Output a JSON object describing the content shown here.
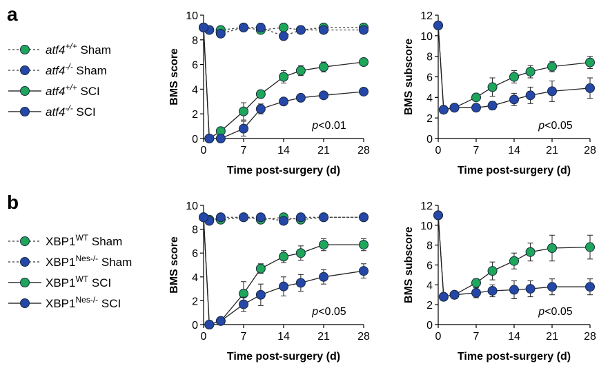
{
  "panels": [
    {
      "letter": "a",
      "legend": [
        {
          "main": "atf4",
          "sup": "+/+",
          "rest": " Sham",
          "italic": true,
          "color": "#1ea65a",
          "dashed": true
        },
        {
          "main": "atf4",
          "sup": "-/-",
          "rest": " Sham",
          "italic": true,
          "color": "#2447a8",
          "dashed": true
        },
        {
          "main": "atf4",
          "sup": "+/+",
          "rest": " SCI",
          "italic": true,
          "color": "#1ea65a",
          "dashed": false
        },
        {
          "main": "atf4",
          "sup": "-/-",
          "rest": " SCI",
          "italic": true,
          "color": "#2447a8",
          "dashed": false
        }
      ]
    },
    {
      "letter": "b",
      "legend": [
        {
          "main": "XBP1",
          "sup": "WT",
          "rest": " Sham",
          "italic": false,
          "color": "#1ea65a",
          "dashed": true
        },
        {
          "main": "XBP1",
          "sup": "Nes-/-",
          "rest": " Sham",
          "italic": false,
          "color": "#2447a8",
          "dashed": true
        },
        {
          "main": "XBP1",
          "sup": "WT",
          "rest": " SCI",
          "italic": false,
          "color": "#1ea65a",
          "dashed": false
        },
        {
          "main": "XBP1",
          "sup": "Nes-/-",
          "rest": " SCI",
          "italic": false,
          "color": "#2447a8",
          "dashed": false
        }
      ]
    }
  ],
  "colors": {
    "green": "#1ea65a",
    "blue": "#2447a8"
  },
  "chart_data": [
    {
      "type": "line",
      "panel": "a",
      "xlabel": "Time post-surgery (d)",
      "ylabel": "BMS score",
      "xlim": [
        0,
        28
      ],
      "ylim": [
        0,
        10
      ],
      "xticks": [
        0,
        7,
        14,
        21,
        28
      ],
      "yticks": [
        0,
        2,
        4,
        6,
        8,
        10
      ],
      "annotation": {
        "p": "p",
        "rest": "<0.01"
      },
      "x": [
        0,
        1,
        3,
        7,
        10,
        14,
        17,
        21,
        28
      ],
      "series": [
        {
          "color": "green",
          "dashed": true,
          "values": [
            9,
            8.8,
            8.8,
            9,
            8.8,
            9,
            8.8,
            9,
            9
          ],
          "err": [
            0.1,
            0.1,
            0.2,
            0.1,
            0.2,
            0.2,
            0.2,
            0.1,
            0.1
          ]
        },
        {
          "color": "blue",
          "dashed": true,
          "values": [
            9,
            8.8,
            8.5,
            9,
            9,
            8.3,
            8.8,
            8.8,
            8.8
          ],
          "err": [
            0.1,
            0.1,
            0.3,
            0.1,
            0.1,
            0.3,
            0.2,
            0.2,
            0.2
          ]
        },
        {
          "color": "green",
          "dashed": false,
          "values": [
            9,
            0,
            0.6,
            2.2,
            3.6,
            5.0,
            5.5,
            5.8,
            6.2
          ],
          "err": [
            0,
            0,
            0.3,
            0.7,
            0.3,
            0.5,
            0.4,
            0.4,
            0.3
          ]
        },
        {
          "color": "blue",
          "dashed": false,
          "values": [
            9,
            0,
            0,
            0.8,
            2.4,
            3.0,
            3.3,
            3.5,
            3.8
          ],
          "err": [
            0,
            0,
            0,
            0.6,
            0.4,
            0.2,
            0.2,
            0.2,
            0.2
          ]
        }
      ]
    },
    {
      "type": "line",
      "panel": "a",
      "xlabel": "Time post-surgery (d)",
      "ylabel": "BMS subscore",
      "xlim": [
        0,
        28
      ],
      "ylim": [
        0,
        12
      ],
      "xticks": [
        0,
        7,
        14,
        21,
        28
      ],
      "yticks": [
        0,
        2,
        4,
        6,
        8,
        10,
        12
      ],
      "annotation": {
        "p": "p",
        "rest": "<0.05"
      },
      "x": [
        0,
        1,
        3,
        7,
        10,
        14,
        17,
        21,
        28
      ],
      "series": [
        {
          "color": "green",
          "dashed": false,
          "values": [
            11,
            2.8,
            3.0,
            4.0,
            5.0,
            6.0,
            6.5,
            7.0,
            7.4
          ],
          "err": [
            0,
            0.2,
            0.2,
            0.3,
            0.9,
            0.6,
            0.6,
            0.5,
            0.6
          ]
        },
        {
          "color": "blue",
          "dashed": false,
          "values": [
            11,
            2.8,
            3.0,
            3.0,
            3.2,
            3.8,
            4.2,
            4.6,
            4.9
          ],
          "err": [
            0,
            0.2,
            0.2,
            0.3,
            0.4,
            0.6,
            0.8,
            1.0,
            1.0
          ]
        }
      ]
    },
    {
      "type": "line",
      "panel": "b",
      "xlabel": "Time post-surgery (d)",
      "ylabel": "BMS score",
      "xlim": [
        0,
        28
      ],
      "ylim": [
        0,
        10
      ],
      "xticks": [
        0,
        7,
        14,
        21,
        28
      ],
      "yticks": [
        0,
        2,
        4,
        6,
        8,
        10
      ],
      "annotation": {
        "p": "p",
        "rest": "<0.05"
      },
      "x": [
        0,
        1,
        3,
        7,
        10,
        14,
        17,
        21,
        28
      ],
      "series": [
        {
          "color": "green",
          "dashed": true,
          "values": [
            9,
            8.8,
            8.8,
            9,
            8.8,
            9,
            8.8,
            9,
            9
          ],
          "err": [
            0.1,
            0.2,
            0.2,
            0.1,
            0.2,
            0.2,
            0.2,
            0.1,
            0.1
          ]
        },
        {
          "color": "blue",
          "dashed": true,
          "values": [
            9,
            8.7,
            9,
            9,
            9,
            8.7,
            9,
            9,
            9
          ],
          "err": [
            0.1,
            0.2,
            0.2,
            0.1,
            0.2,
            0.2,
            0.2,
            0.1,
            0.1
          ]
        },
        {
          "color": "green",
          "dashed": false,
          "values": [
            9,
            0,
            0.3,
            2.6,
            4.7,
            5.7,
            6.0,
            6.7,
            6.7
          ],
          "err": [
            0,
            0,
            0.1,
            1.0,
            0.4,
            0.5,
            0.6,
            0.5,
            0.5
          ]
        },
        {
          "color": "blue",
          "dashed": false,
          "values": [
            9,
            0,
            0.3,
            1.7,
            2.5,
            3.2,
            3.5,
            4.0,
            4.5
          ],
          "err": [
            0,
            0,
            0.1,
            0.6,
            0.9,
            0.8,
            0.7,
            0.6,
            0.6
          ]
        }
      ]
    },
    {
      "type": "line",
      "panel": "b",
      "xlabel": "Time post-surgery (d)",
      "ylabel": "BMS subscore",
      "xlim": [
        0,
        28
      ],
      "ylim": [
        0,
        12
      ],
      "xticks": [
        0,
        7,
        14,
        21,
        28
      ],
      "yticks": [
        0,
        2,
        4,
        6,
        8,
        10,
        12
      ],
      "annotation": {
        "p": "p",
        "rest": "<0.05"
      },
      "x": [
        0,
        1,
        3,
        7,
        10,
        14,
        17,
        21,
        28
      ],
      "series": [
        {
          "color": "green",
          "dashed": false,
          "values": [
            11,
            2.8,
            3.0,
            4.2,
            5.4,
            6.4,
            7.3,
            7.7,
            7.8
          ],
          "err": [
            0,
            0.2,
            0.3,
            0.4,
            0.9,
            0.8,
            0.9,
            1.3,
            1.2
          ]
        },
        {
          "color": "blue",
          "dashed": false,
          "values": [
            11,
            2.8,
            3.0,
            3.2,
            3.4,
            3.5,
            3.6,
            3.8,
            3.8
          ],
          "err": [
            0,
            0.2,
            0.3,
            0.5,
            0.6,
            0.9,
            0.8,
            0.8,
            0.8
          ]
        }
      ]
    }
  ]
}
